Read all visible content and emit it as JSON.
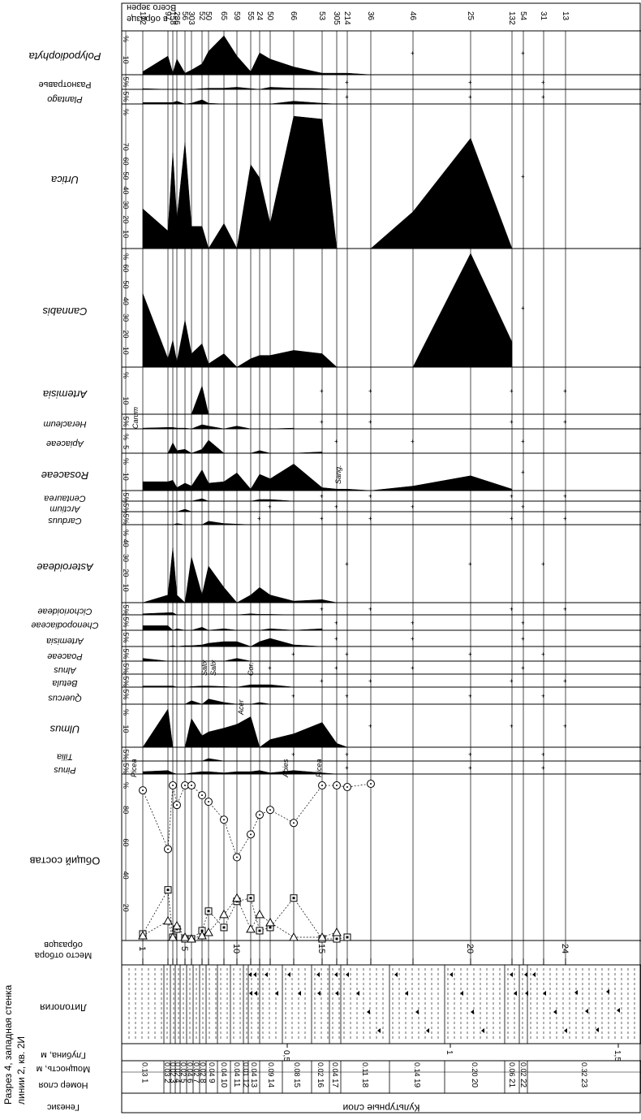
{
  "chart_data": {
    "type": "area",
    "title": "Разрез 4, западная стенка линии 2, кв. 2И",
    "title_lines": [
      "Разрез 4, западная стенка",
      "линии 2, кв. 2И"
    ],
    "genesis": {
      "header": "Генезис",
      "label": "Культурные слои"
    },
    "layer_header": "Номер слоя",
    "thickness_header": "Мощность, м",
    "depth_header": "Глубина, м",
    "lithology_header": "Литология",
    "sample_header": "Место отбора образцов",
    "sample_header_lines": [
      "Место отбора",
      "образцов"
    ],
    "grain_header_lines": [
      "Всего зерен",
      "в образце"
    ],
    "layers": [
      {
        "n": "1",
        "t": "0.13"
      },
      {
        "n": "2",
        "t": "0.03"
      },
      {
        "n": "3",
        "t": "0.02"
      },
      {
        "n": "4",
        "t": "0.02"
      },
      {
        "n": "5",
        "t": "0.02"
      },
      {
        "n": "6",
        "t": "0.04"
      },
      {
        "n": "7",
        "t": "0.02"
      },
      {
        "n": "8",
        "t": "0.02"
      },
      {
        "n": "9",
        "t": "0.04"
      },
      {
        "n": "10",
        "t": "0.04"
      },
      {
        "n": "11",
        "t": "0.04"
      },
      {
        "n": "12",
        "t": "0.01"
      },
      {
        "n": "13",
        "t": "0.04"
      },
      {
        "n": "14",
        "t": "0.09"
      },
      {
        "n": "15",
        "t": "0.08"
      },
      {
        "n": "16",
        "t": "0.02"
      },
      {
        "n": "17",
        "t": "0.04"
      },
      {
        "n": "18",
        "t": "0.11"
      },
      {
        "n": "19",
        "t": "0.14"
      },
      {
        "n": "20",
        "t": "0.20"
      },
      {
        "n": "21",
        "t": "0.06"
      },
      {
        "n": "22",
        "t": "0.02"
      },
      {
        "n": "23",
        "t": "0.32"
      }
    ],
    "depth_ticks": [
      "0,5",
      "1",
      "1,5"
    ],
    "sample_ticks": [
      "1",
      "5",
      "10",
      "15",
      "20",
      "24"
    ],
    "grain_counts": [
      "172",
      "97",
      "158",
      "286",
      "56",
      "303",
      "52",
      "50",
      "65",
      "59",
      "55",
      "24",
      "50",
      "66",
      "53",
      "305",
      "214",
      "36",
      "46",
      "25",
      "132",
      "54",
      "31",
      "13"
    ],
    "general": {
      "label": "Общий состав",
      "ticks": [
        "20",
        "40",
        "60",
        "80",
        "%"
      ],
      "series": [
        {
          "marker": "circle",
          "values": [
            92,
            56,
            95,
            83,
            95,
            95,
            89,
            85,
            74,
            51,
            65,
            77,
            80,
            72,
            95,
            95,
            94,
            96
          ]
        },
        {
          "marker": "square",
          "values": [
            4,
            31,
            2,
            7,
            1,
            1,
            6,
            18,
            8,
            24,
            26,
            6,
            8,
            26,
            1,
            1,
            2
          ]
        },
        {
          "marker": "triangle",
          "values": [
            3,
            12,
            2,
            9,
            2,
            1,
            3,
            5,
            16,
            26,
            7,
            16,
            11,
            2,
            2,
            5
          ]
        }
      ]
    },
    "taxa": [
      {
        "name": "Polypodiophyta",
        "ticks": [
          "10",
          "%"
        ],
        "values": [
          2,
          12,
          1,
          10,
          1,
          3,
          7,
          15,
          25,
          12,
          2,
          14,
          10,
          5,
          1,
          1,
          1,
          0
        ]
      },
      {
        "name": "Разнотравье",
        "ticks": [
          "5%"
        ],
        "values": [
          0.5,
          0,
          0,
          0,
          0,
          0,
          0.5,
          0.8,
          0.8,
          1.5,
          0.5,
          0,
          1.5,
          0.8,
          0.5,
          0
        ]
      },
      {
        "name": "Plantago",
        "ticks": [
          "5%"
        ],
        "values": [
          1,
          1,
          1,
          2,
          0,
          0.5,
          3,
          0.5,
          0,
          0,
          0,
          0,
          0,
          2,
          0.5,
          0
        ]
      },
      {
        "name": "Urtica",
        "ticks": [
          "10",
          "20",
          "30",
          "40",
          "50",
          "60",
          "70",
          "%"
        ],
        "values": [
          27,
          12,
          65,
          20,
          72,
          15,
          15,
          0,
          17,
          0,
          57,
          48,
          17,
          90,
          88,
          0,
          0,
          0,
          25,
          75,
          0
        ]
      },
      {
        "name": "Cannabis",
        "ticks": [
          "10",
          "20",
          "30",
          "40",
          "50",
          "60",
          "%"
        ],
        "values": [
          44,
          5,
          16,
          3,
          28,
          8,
          14,
          2,
          8,
          0,
          5,
          7,
          7,
          10,
          8,
          0,
          0,
          0,
          0,
          70,
          15
        ]
      },
      {
        "name": "Artemisia",
        "ticks": [
          "10",
          "%"
        ],
        "values": [
          0,
          0,
          0,
          0,
          0,
          0,
          20,
          0,
          0,
          0,
          0,
          0,
          0,
          0
        ]
      },
      {
        "name": "Heracleum",
        "ticks": [
          "5%"
        ],
        "values": [
          0.5,
          1,
          1,
          0.5,
          0.5,
          0,
          3,
          2,
          0,
          2,
          0,
          0,
          0,
          0.5
        ]
      },
      {
        "name": "Apiaceae",
        "ticks": [
          "5",
          "%"
        ],
        "values": [
          0,
          0,
          8,
          2,
          3,
          0,
          3,
          10,
          0,
          0,
          0,
          2,
          0,
          0,
          1
        ]
      },
      {
        "name": "Rosaceae",
        "ticks": [
          "10",
          "%"
        ],
        "values": [
          6,
          6,
          7,
          2,
          5,
          3,
          14,
          5,
          6,
          12,
          1,
          11,
          8,
          18,
          2,
          1,
          1,
          0,
          3,
          10,
          1
        ]
      },
      {
        "name": "Centaurea",
        "ticks": [
          "5%"
        ],
        "values": [
          0,
          0,
          0,
          0,
          0,
          0,
          3,
          0,
          0,
          0,
          0,
          2,
          2,
          0
        ]
      },
      {
        "name": "Arctium",
        "ticks": [
          "5%"
        ],
        "values": [
          0,
          0,
          0,
          0,
          3,
          0,
          0,
          0,
          0,
          0,
          0,
          0
        ]
      },
      {
        "name": "Carduus",
        "ticks": [
          "5%"
        ],
        "values": [
          0,
          0,
          0,
          1,
          0,
          0,
          0,
          3,
          1,
          0.5,
          0
        ]
      },
      {
        "name": "Asteroideae",
        "ticks": [
          "10",
          "20",
          "30",
          "40",
          "%"
        ],
        "values": [
          0,
          5,
          36,
          5,
          0,
          30,
          5,
          24,
          10,
          0,
          5,
          10,
          5,
          1,
          2,
          0
        ]
      },
      {
        "name": "Cichorioideae",
        "ticks": [
          "5%"
        ],
        "values": [
          1,
          2,
          2,
          0,
          0,
          0,
          0,
          0,
          0,
          0,
          1,
          0.5,
          0.5,
          0
        ]
      },
      {
        "name": "Chenopodiaceae",
        "ticks": [
          "5%"
        ],
        "values": [
          3,
          3,
          0,
          1,
          0,
          0,
          2,
          0,
          1,
          0,
          0,
          0,
          1,
          0,
          1
        ]
      },
      {
        "name": "Artemisia",
        "ticks": [
          "5%"
        ],
        "values": [
          0,
          0,
          0.5,
          0,
          0.5,
          0.5,
          1,
          2,
          3,
          3,
          0,
          3,
          5,
          1,
          0
        ]
      },
      {
        "name": "Poaceae",
        "ticks": [
          "5%"
        ],
        "values": [
          2,
          0,
          0,
          0,
          0,
          0,
          0,
          0,
          0,
          2,
          0,
          0,
          0
        ]
      },
      {
        "name": "Alnus",
        "ticks": [
          "5%"
        ],
        "values": [
          0,
          0,
          0,
          0,
          0,
          0,
          0,
          0,
          0,
          0,
          0,
          0
        ]
      },
      {
        "name": "Betula",
        "ticks": [
          "5%"
        ],
        "values": [
          1,
          1,
          1,
          0,
          0,
          0.5,
          1,
          1,
          0.5,
          0,
          2,
          2,
          2,
          0
        ]
      },
      {
        "name": "Quercus",
        "ticks": [
          "5%"
        ],
        "values": [
          0,
          0,
          0,
          0,
          0,
          2,
          0,
          3,
          1,
          0,
          0,
          1,
          0
        ]
      },
      {
        "name": "Ulmus",
        "ticks": [
          "10",
          "%"
        ],
        "values": [
          0,
          20,
          0,
          0,
          0,
          15,
          6,
          8,
          10,
          12,
          16,
          0,
          4,
          7,
          13,
          2,
          0
        ]
      },
      {
        "name": "Tilia",
        "ticks": [
          "5%"
        ],
        "values": [
          0,
          0,
          0,
          0,
          0,
          0,
          0,
          2,
          0,
          0,
          0,
          0,
          0
        ]
      },
      {
        "name": "Pinus",
        "ticks": [
          "5%"
        ],
        "values": [
          2,
          3,
          1,
          0,
          0,
          1,
          2,
          2,
          1,
          2,
          2,
          3,
          1,
          3,
          1,
          0
        ]
      }
    ],
    "annotations": [
      "Picea",
      "Carum",
      "Sang.",
      "Salix",
      "Salix",
      "Cor.",
      "Acer",
      "Abies",
      "Picea"
    ]
  }
}
